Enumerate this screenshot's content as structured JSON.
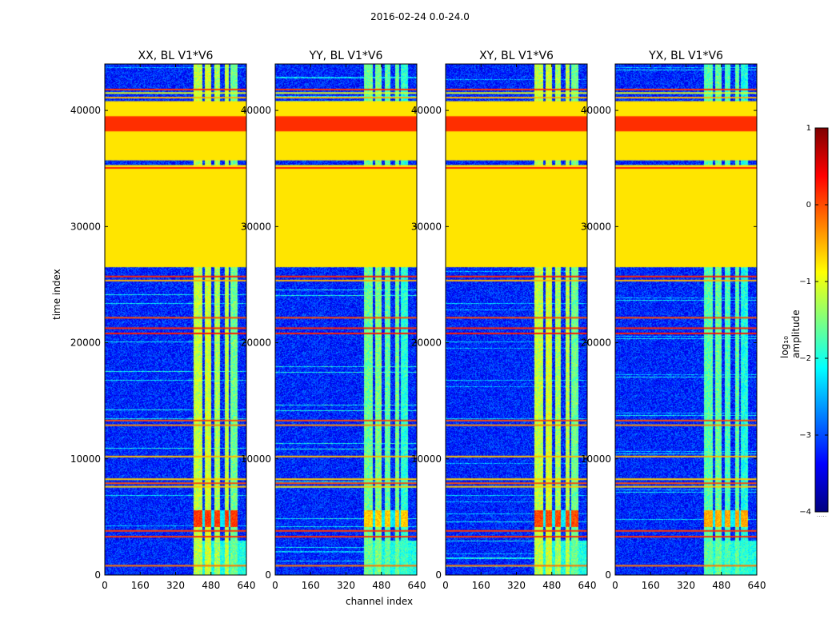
{
  "figure": {
    "suptitle": "2016-02-24 0.0-24.0",
    "ylabel": "time index",
    "xlabel": "channel index"
  },
  "colorbar": {
    "label": "log₁₀ amplitude",
    "ticks": [
      1,
      0,
      -1,
      -2,
      -3,
      -4
    ],
    "tick_labels": [
      "1",
      "0",
      "−1",
      "−2",
      "−3",
      "−4"
    ],
    "range": [
      -4,
      1
    ],
    "colormap": "jet",
    "colors": [
      "#00007f",
      "#0000ff",
      "#007fff",
      "#00ffff",
      "#7fff7f",
      "#ffff00",
      "#ff7f00",
      "#ff0000",
      "#7f0000"
    ],
    "below_marker": "....."
  },
  "chart_data": [
    {
      "type": "heatmap",
      "title": "XX, BL V1*V6",
      "xlim": [
        0,
        640
      ],
      "ylim": [
        0,
        44000
      ],
      "xticks": [
        0,
        160,
        320,
        480,
        640
      ],
      "yticks": [
        0,
        10000,
        20000,
        30000,
        40000
      ],
      "show_ytick_labels": true,
      "cross_strength": 1.0,
      "burst_level": 1.0
    },
    {
      "type": "heatmap",
      "title": "YY, BL V1*V6",
      "xlim": [
        0,
        640
      ],
      "ylim": [
        0,
        44000
      ],
      "xticks": [
        0,
        160,
        320,
        480,
        640
      ],
      "yticks": [
        0,
        10000,
        20000,
        30000,
        40000
      ],
      "show_ytick_labels": true,
      "cross_strength": 0.55,
      "burst_level": 0.55
    },
    {
      "type": "heatmap",
      "title": "XY, BL V1*V6",
      "xlim": [
        0,
        640
      ],
      "ylim": [
        0,
        44000
      ],
      "xticks": [
        0,
        160,
        320,
        480,
        640
      ],
      "yticks": [
        0,
        10000,
        20000,
        30000,
        40000
      ],
      "show_ytick_labels": true,
      "cross_strength": 1.0,
      "burst_level": 0.95
    },
    {
      "type": "heatmap",
      "title": "YX, BL V1*V6",
      "xlim": [
        0,
        640
      ],
      "ylim": [
        0,
        44000
      ],
      "xticks": [
        0,
        160,
        320,
        480,
        640
      ],
      "yticks": [
        0,
        10000,
        20000,
        30000,
        40000
      ],
      "show_ytick_labels": true,
      "cross_strength": 0.45,
      "burst_level": 0.65
    }
  ],
  "flagged_blocks": [
    {
      "t0": 35700,
      "t1": 40800,
      "log_amp": -0.75
    },
    {
      "t0": 26500,
      "t1": 35300,
      "log_amp": -0.75
    },
    {
      "t0": 38200,
      "t1": 39500,
      "log_amp": 0.15
    }
  ],
  "flagged_lines": [
    {
      "t": 41800,
      "log_amp": 0.1
    },
    {
      "t": 41500,
      "log_amp": -1.0
    },
    {
      "t": 41100,
      "log_amp": -0.5
    },
    {
      "t": 35050,
      "log_amp": 0.2
    },
    {
      "t": 25700,
      "log_amp": 0.2
    },
    {
      "t": 25350,
      "log_amp": -0.5
    },
    {
      "t": 22150,
      "log_amp": 0.0
    },
    {
      "t": 21250,
      "log_amp": 0.2
    },
    {
      "t": 20800,
      "log_amp": 0.25
    },
    {
      "t": 13300,
      "log_amp": 0.0
    },
    {
      "t": 12900,
      "log_amp": -0.3
    },
    {
      "t": 10200,
      "log_amp": -0.5
    },
    {
      "t": 8250,
      "log_amp": -0.6
    },
    {
      "t": 7900,
      "log_amp": 0.0
    },
    {
      "t": 7600,
      "log_amp": -0.6
    },
    {
      "t": 3800,
      "log_amp": 0.1
    },
    {
      "t": 3300,
      "log_amp": 0.15
    },
    {
      "t": 800,
      "log_amp": -0.2
    }
  ],
  "rfi_bands": [
    {
      "c0": 400,
      "c1": 440,
      "log_amp": -1.2
    },
    {
      "c0": 450,
      "c1": 480,
      "log_amp": -1.1
    },
    {
      "c0": 495,
      "c1": 520,
      "log_amp": -1.3
    },
    {
      "c0": 540,
      "c1": 560,
      "log_amp": -1.2
    },
    {
      "c0": 565,
      "c1": 600,
      "log_amp": -1.6
    }
  ],
  "bursts": [
    {
      "t0": 4200,
      "t1": 5600,
      "c0": 400,
      "c1": 600,
      "log_amp": 0.1
    }
  ]
}
